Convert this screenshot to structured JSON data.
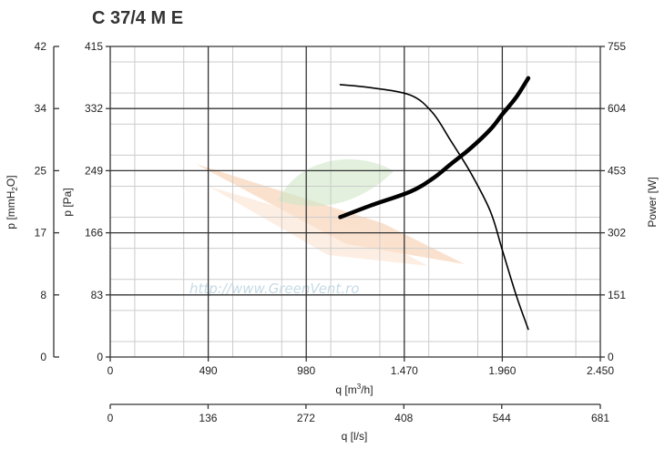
{
  "title": "C 37/4 M E",
  "watermark": "http://www.GreenVent.ro",
  "colors": {
    "grid_major": "#333333",
    "grid_minor": "#cccccc",
    "curve": "#000000",
    "text": "#222222",
    "watermark": "#c5dbe6"
  },
  "chart_data": {
    "type": "line",
    "grid": true,
    "x_axis": {
      "label_prefix": "q [m",
      "label_sup": "3",
      "label_suffix": "/h]",
      "range": [
        0,
        2450
      ],
      "ticks": [
        0,
        490,
        980,
        1470,
        1960,
        2450
      ],
      "tick_labels": [
        "0",
        "490",
        "980",
        "1.470",
        "1.960",
        "2.450"
      ]
    },
    "x2_axis": {
      "label": "q [l/s]",
      "range": [
        0,
        681
      ],
      "ticks": [
        0,
        136,
        272,
        408,
        544,
        681
      ],
      "tick_labels": [
        "0",
        "136",
        "272",
        "408",
        "544",
        "681"
      ]
    },
    "y_axis_pa": {
      "label": "p [Pa]",
      "range": [
        0,
        415
      ],
      "ticks": [
        0,
        83,
        166,
        249,
        332,
        415
      ],
      "tick_labels": [
        "0",
        "83",
        "166",
        "249",
        "332",
        "415"
      ]
    },
    "y_axis_mmh2o": {
      "label_prefix": "p [mmH",
      "label_sub": "2",
      "label_suffix": "O]",
      "range": [
        0,
        42
      ],
      "tick_labels": [
        "0",
        "8",
        "17",
        "25",
        "34",
        "42"
      ]
    },
    "y_axis_power": {
      "label": "Power [W]",
      "range": [
        0,
        755
      ],
      "ticks": [
        0,
        151,
        302,
        453,
        604,
        755
      ],
      "tick_labels": [
        "0",
        "151",
        "302",
        "453",
        "604",
        "755"
      ]
    },
    "series": [
      {
        "axis": "pressure_pa",
        "stroke": "thin",
        "x": [
          1150,
          1300,
          1500,
          1610,
          1700,
          1800,
          1900,
          1960,
          2030,
          2090
        ],
        "y": [
          364,
          360,
          350,
          327,
          290,
          247,
          195,
          143,
          82,
          37
        ]
      },
      {
        "axis": "power_w",
        "stroke": "thick",
        "x": [
          1150,
          1300,
          1500,
          1610,
          1700,
          1800,
          1900,
          1960,
          2030,
          2090
        ],
        "y": [
          340,
          368,
          402,
          433,
          468,
          507,
          553,
          590,
          632,
          678
        ]
      }
    ]
  }
}
